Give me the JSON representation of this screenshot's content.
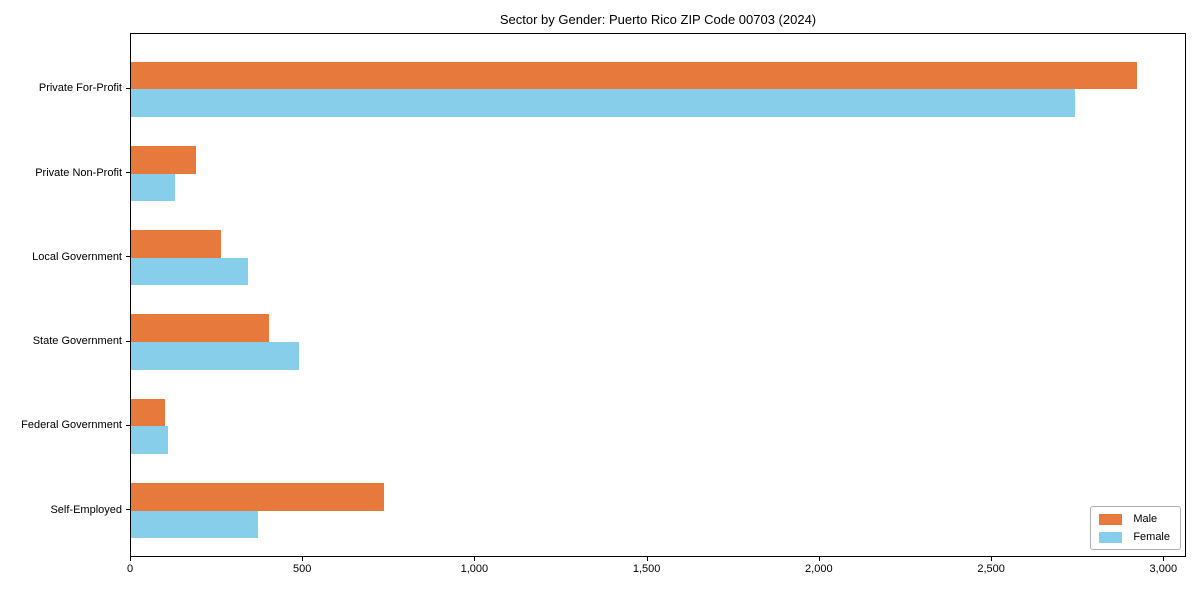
{
  "title": "Sector by Gender: Puerto Rico ZIP Code 00703 (2024)",
  "colors": {
    "male_bar": "#E8793C",
    "female_bar": "#87CEEB",
    "axis": "#000000",
    "legend_border": "#B0B0B0",
    "background": "#FFFFFF"
  },
  "legend": {
    "position": "lower right",
    "items": [
      {
        "label": "Male",
        "color": "#E8793C"
      },
      {
        "label": "Female",
        "color": "#87CEEB"
      }
    ]
  },
  "chart_data": {
    "type": "bar",
    "orientation": "horizontal",
    "title": "Sector by Gender: Puerto Rico ZIP Code 00703 (2024)",
    "xlabel": "",
    "ylabel": "",
    "categories": [
      "Private For-Profit",
      "Private Non-Profit",
      "Local Government",
      "State Government",
      "Federal Government",
      "Self-Employed"
    ],
    "series": [
      {
        "name": "Male",
        "color": "#E8793C",
        "values": [
          2920,
          190,
          260,
          400,
          100,
          734
        ]
      },
      {
        "name": "Female",
        "color": "#87CEEB",
        "values": [
          2740,
          127,
          339,
          487,
          108,
          370
        ]
      }
    ],
    "xlim": [
      0,
      3066
    ],
    "xticks": [
      0,
      500,
      1000,
      1500,
      2000,
      2500,
      3000
    ],
    "xtick_labels": [
      "0",
      "500",
      "1,000",
      "1,500",
      "2,000",
      "2,500",
      "3,000"
    ],
    "grid": false,
    "legend_position": "lower right"
  }
}
